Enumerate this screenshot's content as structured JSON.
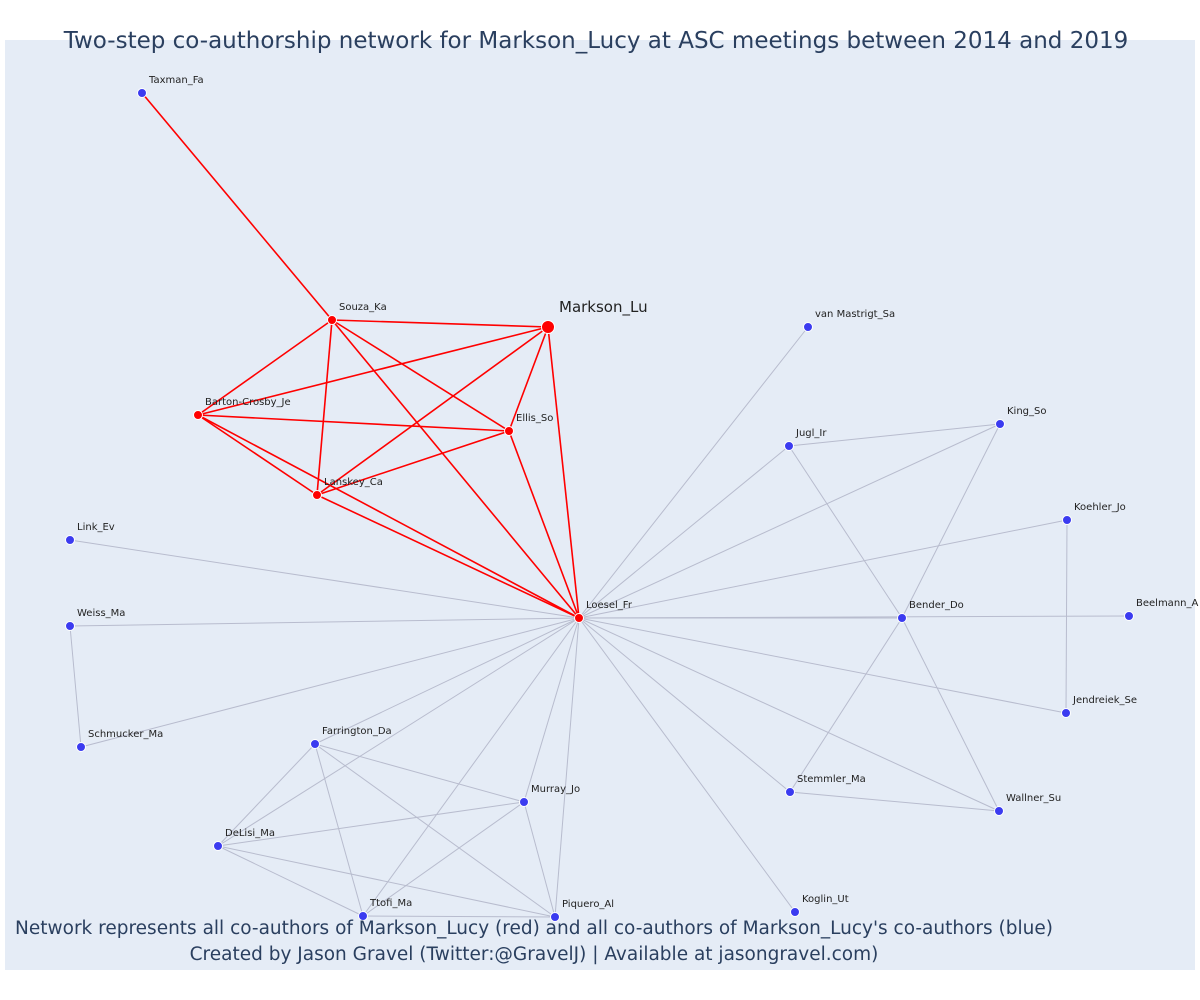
{
  "title": "Two-step co-authorship network for Markson_Lucy at ASC meetings between 2014 and 2019",
  "caption_line1": "Network represents all co-authors of Markson_Lucy (red) and all co-authors of Markson_Lucy's co-authors (blue)",
  "caption_line2": "Created by Jason Gravel (Twitter:@GravelJ) | Available at jasongravel.com)",
  "colors": {
    "plot_background": "#e5ecf6",
    "first_step": "#ff0000",
    "second_step": "#3b3bf0",
    "second_step_edge": "#b8bcce"
  },
  "network": {
    "focal": "Markson_Lu",
    "nodes": [
      {
        "id": "Markson_Lu",
        "group": "focal"
      },
      {
        "id": "Souza_Ka",
        "group": "first"
      },
      {
        "id": "Barton-Crosby_Je",
        "group": "first"
      },
      {
        "id": "Ellis_So",
        "group": "first"
      },
      {
        "id": "Lanskey_Ca",
        "group": "first"
      },
      {
        "id": "Loesel_Fr",
        "group": "first"
      },
      {
        "id": "Taxman_Fa",
        "group": "second"
      },
      {
        "id": "van Mastrigt_Sa",
        "group": "second"
      },
      {
        "id": "King_So",
        "group": "second"
      },
      {
        "id": "Jugl_Ir",
        "group": "second"
      },
      {
        "id": "Koehler_Jo",
        "group": "second"
      },
      {
        "id": "Link_Ev",
        "group": "second"
      },
      {
        "id": "Weiss_Ma",
        "group": "second"
      },
      {
        "id": "Bender_Do",
        "group": "second"
      },
      {
        "id": "Beelmann_A",
        "group": "second"
      },
      {
        "id": "Jendreiek_Se",
        "group": "second"
      },
      {
        "id": "Schmucker_Ma",
        "group": "second"
      },
      {
        "id": "Farrington_Da",
        "group": "second"
      },
      {
        "id": "Murray_Jo",
        "group": "second"
      },
      {
        "id": "Stemmler_Ma",
        "group": "second"
      },
      {
        "id": "Wallner_Su",
        "group": "second"
      },
      {
        "id": "DeLisi_Ma",
        "group": "second"
      },
      {
        "id": "Koglin_Ut",
        "group": "second"
      },
      {
        "id": "Ttofi_Ma",
        "group": "second"
      },
      {
        "id": "Piquero_Al",
        "group": "second"
      }
    ],
    "edges": [
      [
        "Markson_Lu",
        "Souza_Ka"
      ],
      [
        "Markson_Lu",
        "Barton-Crosby_Je"
      ],
      [
        "Markson_Lu",
        "Ellis_So"
      ],
      [
        "Markson_Lu",
        "Lanskey_Ca"
      ],
      [
        "Markson_Lu",
        "Loesel_Fr"
      ],
      [
        "Souza_Ka",
        "Barton-Crosby_Je"
      ],
      [
        "Souza_Ka",
        "Ellis_So"
      ],
      [
        "Souza_Ka",
        "Lanskey_Ca"
      ],
      [
        "Souza_Ka",
        "Loesel_Fr"
      ],
      [
        "Barton-Crosby_Je",
        "Ellis_So"
      ],
      [
        "Barton-Crosby_Je",
        "Lanskey_Ca"
      ],
      [
        "Barton-Crosby_Je",
        "Loesel_Fr"
      ],
      [
        "Ellis_So",
        "Lanskey_Ca"
      ],
      [
        "Ellis_So",
        "Loesel_Fr"
      ],
      [
        "Lanskey_Ca",
        "Loesel_Fr"
      ],
      [
        "Souza_Ka",
        "Taxman_Fa"
      ],
      [
        "Loesel_Fr",
        "van Mastrigt_Sa"
      ],
      [
        "Loesel_Fr",
        "Jugl_Ir"
      ],
      [
        "Loesel_Fr",
        "King_So"
      ],
      [
        "Loesel_Fr",
        "Koehler_Jo"
      ],
      [
        "Loesel_Fr",
        "Link_Ev"
      ],
      [
        "Loesel_Fr",
        "Weiss_Ma"
      ],
      [
        "Loesel_Fr",
        "Bender_Do"
      ],
      [
        "Loesel_Fr",
        "Beelmann_A"
      ],
      [
        "Loesel_Fr",
        "Jendreiek_Se"
      ],
      [
        "Loesel_Fr",
        "Schmucker_Ma"
      ],
      [
        "Loesel_Fr",
        "Farrington_Da"
      ],
      [
        "Loesel_Fr",
        "Murray_Jo"
      ],
      [
        "Loesel_Fr",
        "Stemmler_Ma"
      ],
      [
        "Loesel_Fr",
        "Wallner_Su"
      ],
      [
        "Loesel_Fr",
        "DeLisi_Ma"
      ],
      [
        "Loesel_Fr",
        "Koglin_Ut"
      ],
      [
        "Loesel_Fr",
        "Ttofi_Ma"
      ],
      [
        "Loesel_Fr",
        "Piquero_Al"
      ],
      [
        "Jugl_Ir",
        "King_So"
      ],
      [
        "Jugl_Ir",
        "Bender_Do"
      ],
      [
        "King_So",
        "Bender_Do"
      ],
      [
        "Koehler_Jo",
        "Jendreiek_Se"
      ],
      [
        "Bender_Do",
        "Stemmler_Ma"
      ],
      [
        "Bender_Do",
        "Wallner_Su"
      ],
      [
        "Stemmler_Ma",
        "Wallner_Su"
      ],
      [
        "Weiss_Ma",
        "Schmucker_Ma"
      ],
      [
        "Farrington_Da",
        "Murray_Jo"
      ],
      [
        "Farrington_Da",
        "DeLisi_Ma"
      ],
      [
        "Farrington_Da",
        "Ttofi_Ma"
      ],
      [
        "Farrington_Da",
        "Piquero_Al"
      ],
      [
        "Murray_Jo",
        "DeLisi_Ma"
      ],
      [
        "Murray_Jo",
        "Ttofi_Ma"
      ],
      [
        "Murray_Jo",
        "Piquero_Al"
      ],
      [
        "DeLisi_Ma",
        "Ttofi_Ma"
      ],
      [
        "DeLisi_Ma",
        "Piquero_Al"
      ],
      [
        "Ttofi_Ma",
        "Piquero_Al"
      ]
    ]
  }
}
